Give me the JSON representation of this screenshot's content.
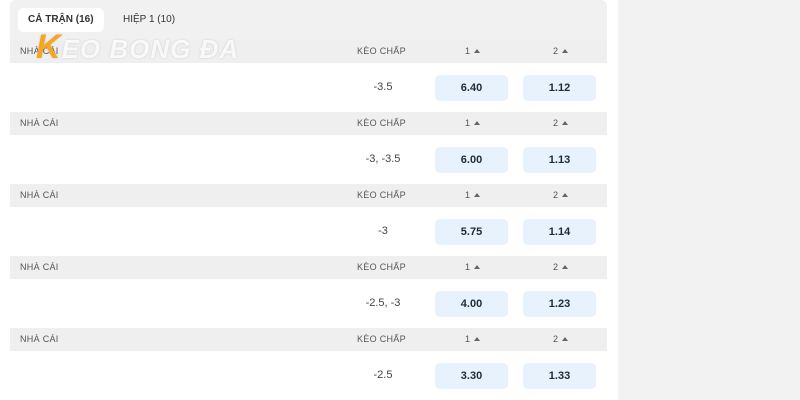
{
  "tabs": [
    "CẢ TRẬN (16)",
    "HIỆP 1 (10)"
  ],
  "logo": {
    "accent": "K",
    "rest": "EO BONG ĐA"
  },
  "columns": {
    "bookmaker": "NHÀ CÁI",
    "handicap": "KÈO CHẤP",
    "home": "1",
    "away": "2"
  },
  "rows": [
    {
      "handicap": "-3.5",
      "home": "6.40",
      "away": "1.12"
    },
    {
      "handicap": "-3, -3.5",
      "home": "6.00",
      "away": "1.13"
    },
    {
      "handicap": "-3",
      "home": "5.75",
      "away": "1.14"
    },
    {
      "handicap": "-2.5, -3",
      "home": "4.00",
      "away": "1.23"
    },
    {
      "handicap": "-2.5",
      "home": "3.30",
      "away": "1.33"
    }
  ]
}
